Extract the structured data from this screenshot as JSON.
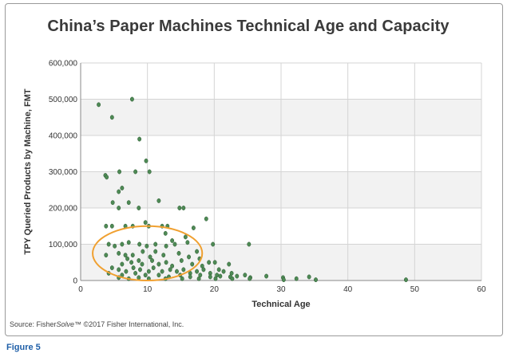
{
  "figure_label": "Figure 5",
  "source": {
    "prefix": "Source: Fisher",
    "italic": "Solve",
    "suffix": "™ ©2017 Fisher International, Inc."
  },
  "colors": {
    "point": "#4e8a55",
    "point_edge": "#2e5a33",
    "highlight": "#f0a030",
    "plot_shade": "#f2f2f2",
    "grid": "#d4d4d4"
  },
  "chart_data": {
    "type": "scatter",
    "title": "China’s Paper Machines Technical Age and Capacity",
    "xlabel": "Technical Age",
    "ylabel": "TPY Queried Products by Machine, FMT",
    "xlim": [
      0,
      60
    ],
    "ylim": [
      0,
      600000
    ],
    "xticks": [
      0,
      10,
      20,
      30,
      40,
      50,
      60
    ],
    "yticks": [
      0,
      100000,
      200000,
      300000,
      400000,
      500000,
      600000
    ],
    "ytick_labels": [
      "0",
      "100,000",
      "200,000",
      "300,000",
      "400,000",
      "500,000",
      "600,000"
    ],
    "grid": true,
    "annotation": {
      "shape": "ellipse",
      "center": [
        10,
        75000
      ],
      "x_radius": 8.2,
      "y_radius": 75000
    },
    "points": [
      [
        2.7,
        485000
      ],
      [
        7.7,
        500000
      ],
      [
        4.7,
        450000
      ],
      [
        8.8,
        390000
      ],
      [
        9.8,
        330000
      ],
      [
        3.7,
        290000
      ],
      [
        3.9,
        285000
      ],
      [
        5.8,
        300000
      ],
      [
        8.2,
        300000
      ],
      [
        10.3,
        300000
      ],
      [
        6.2,
        255000
      ],
      [
        5.7,
        245000
      ],
      [
        4.8,
        215000
      ],
      [
        11.7,
        220000
      ],
      [
        7.2,
        215000
      ],
      [
        8.7,
        200000
      ],
      [
        5.7,
        200000
      ],
      [
        14.8,
        200000
      ],
      [
        15.4,
        200000
      ],
      [
        18.8,
        170000
      ],
      [
        3.8,
        150000
      ],
      [
        4.7,
        150000
      ],
      [
        6.7,
        150000
      ],
      [
        7.8,
        150000
      ],
      [
        10.2,
        150000
      ],
      [
        12.2,
        150000
      ],
      [
        13.0,
        150000
      ],
      [
        9.7,
        160000
      ],
      [
        16.9,
        145000
      ],
      [
        12.7,
        130000
      ],
      [
        15.7,
        120000
      ],
      [
        13.7,
        110000
      ],
      [
        16.0,
        105000
      ],
      [
        19.8,
        100000
      ],
      [
        25.2,
        100000
      ],
      [
        4.2,
        100000
      ],
      [
        5.1,
        95000
      ],
      [
        6.2,
        100000
      ],
      [
        7.2,
        105000
      ],
      [
        8.8,
        100000
      ],
      [
        9.9,
        95000
      ],
      [
        11.2,
        100000
      ],
      [
        12.8,
        95000
      ],
      [
        14.1,
        100000
      ],
      [
        11.2,
        80000
      ],
      [
        17.4,
        80000
      ],
      [
        3.8,
        70000
      ],
      [
        5.7,
        75000
      ],
      [
        6.7,
        70000
      ],
      [
        7.8,
        70000
      ],
      [
        9.3,
        80000
      ],
      [
        10.4,
        65000
      ],
      [
        12.4,
        70000
      ],
      [
        14.7,
        75000
      ],
      [
        16.2,
        65000
      ],
      [
        7.0,
        60000
      ],
      [
        8.7,
        55000
      ],
      [
        10.7,
        55000
      ],
      [
        12.8,
        50000
      ],
      [
        15.1,
        55000
      ],
      [
        17.8,
        60000
      ],
      [
        19.2,
        50000
      ],
      [
        20.1,
        50000
      ],
      [
        22.2,
        45000
      ],
      [
        6.2,
        45000
      ],
      [
        7.6,
        50000
      ],
      [
        9.2,
        45000
      ],
      [
        11.7,
        45000
      ],
      [
        13.7,
        40000
      ],
      [
        16.7,
        45000
      ],
      [
        18.2,
        40000
      ],
      [
        20.7,
        30000
      ],
      [
        4.7,
        35000
      ],
      [
        5.7,
        30000
      ],
      [
        6.8,
        25000
      ],
      [
        7.9,
        35000
      ],
      [
        8.9,
        30000
      ],
      [
        10.2,
        25000
      ],
      [
        10.9,
        35000
      ],
      [
        12.2,
        25000
      ],
      [
        13.4,
        30000
      ],
      [
        14.4,
        25000
      ],
      [
        15.4,
        30000
      ],
      [
        16.4,
        20000
      ],
      [
        17.4,
        25000
      ],
      [
        18.4,
        30000
      ],
      [
        19.4,
        20000
      ],
      [
        20.4,
        15000
      ],
      [
        21.4,
        25000
      ],
      [
        22.6,
        20000
      ],
      [
        4.2,
        20000
      ],
      [
        6.2,
        15000
      ],
      [
        8.2,
        20000
      ],
      [
        9.7,
        15000
      ],
      [
        11.7,
        15000
      ],
      [
        13.2,
        10000
      ],
      [
        14.9,
        15000
      ],
      [
        16.4,
        10000
      ],
      [
        17.9,
        15000
      ],
      [
        19.4,
        10000
      ],
      [
        20.9,
        12000
      ],
      [
        22.4,
        10000
      ],
      [
        23.4,
        12000
      ],
      [
        25.4,
        8000
      ],
      [
        24.6,
        15000
      ],
      [
        5.7,
        8000
      ],
      [
        7.2,
        5000
      ],
      [
        8.7,
        8000
      ],
      [
        10.2,
        5000
      ],
      [
        12.7,
        5000
      ],
      [
        15.2,
        5000
      ],
      [
        17.7,
        5000
      ],
      [
        20.2,
        5000
      ],
      [
        22.7,
        5000
      ],
      [
        25.3,
        5000
      ],
      [
        27.8,
        12000
      ],
      [
        30.3,
        8000
      ],
      [
        32.3,
        5000
      ],
      [
        30.4,
        2000
      ],
      [
        34.2,
        10000
      ],
      [
        35.2,
        2000
      ],
      [
        48.7,
        2000
      ]
    ]
  }
}
